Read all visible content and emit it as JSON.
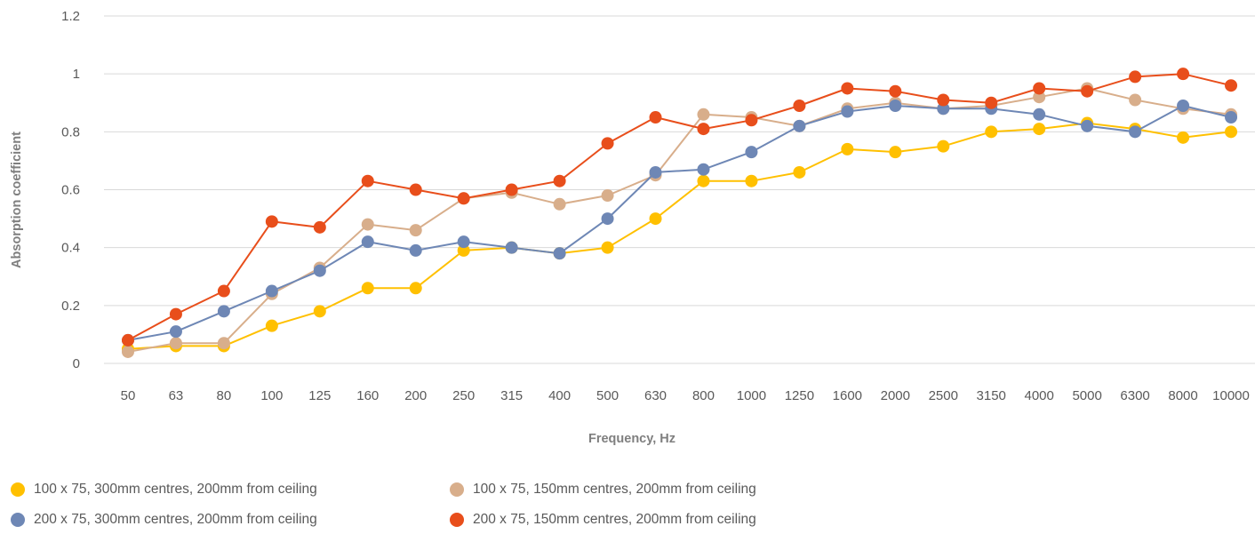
{
  "chart_data": {
    "type": "line",
    "title": "",
    "xlabel": "Frequency, Hz",
    "ylabel": "Absorption coefficient",
    "ylim": [
      0,
      1.2
    ],
    "yticks": [
      "0",
      "0.2",
      "0.4",
      "0.6",
      "0.8",
      "1",
      "1.2"
    ],
    "grid": true,
    "legend_position": "bottom",
    "categories": [
      "50",
      "63",
      "80",
      "100",
      "125",
      "160",
      "200",
      "250",
      "315",
      "400",
      "500",
      "630",
      "800",
      "1000",
      "1250",
      "1600",
      "2000",
      "2500",
      "3150",
      "4000",
      "5000",
      "6300",
      "8000",
      "10000"
    ],
    "series": [
      {
        "name": "100 x 75, 300mm centres, 200mm from ceiling",
        "color": "#FFC000",
        "values": [
          0.05,
          0.06,
          0.06,
          0.13,
          0.18,
          0.26,
          0.26,
          0.39,
          0.4,
          0.38,
          0.4,
          0.5,
          0.63,
          0.63,
          0.66,
          0.74,
          0.73,
          0.75,
          0.8,
          0.81,
          0.83,
          0.81,
          0.78,
          0.8
        ]
      },
      {
        "name": "100 x 75, 150mm centres, 200mm from ceiling",
        "color": "#D8AE8B",
        "values": [
          0.04,
          0.07,
          0.07,
          0.24,
          0.33,
          0.48,
          0.46,
          0.57,
          0.59,
          0.55,
          0.58,
          0.65,
          0.86,
          0.85,
          0.82,
          0.88,
          0.9,
          0.88,
          0.89,
          0.92,
          0.95,
          0.91,
          0.88,
          0.86
        ]
      },
      {
        "name": "200 x 75, 300mm centres, 200mm from ceiling",
        "color": "#6E87B5",
        "values": [
          0.08,
          0.11,
          0.18,
          0.25,
          0.32,
          0.42,
          0.39,
          0.42,
          0.4,
          0.38,
          0.5,
          0.66,
          0.67,
          0.73,
          0.82,
          0.87,
          0.89,
          0.88,
          0.88,
          0.86,
          0.82,
          0.8,
          0.89,
          0.85
        ]
      },
      {
        "name": "200 x 75, 150mm centres, 200mm from ceiling",
        "color": "#E84E1B",
        "values": [
          0.08,
          0.17,
          0.25,
          0.49,
          0.47,
          0.63,
          0.6,
          0.57,
          0.6,
          0.63,
          0.76,
          0.85,
          0.81,
          0.84,
          0.89,
          0.95,
          0.94,
          0.91,
          0.9,
          0.95,
          0.94,
          0.99,
          1.0,
          0.96
        ]
      }
    ]
  }
}
